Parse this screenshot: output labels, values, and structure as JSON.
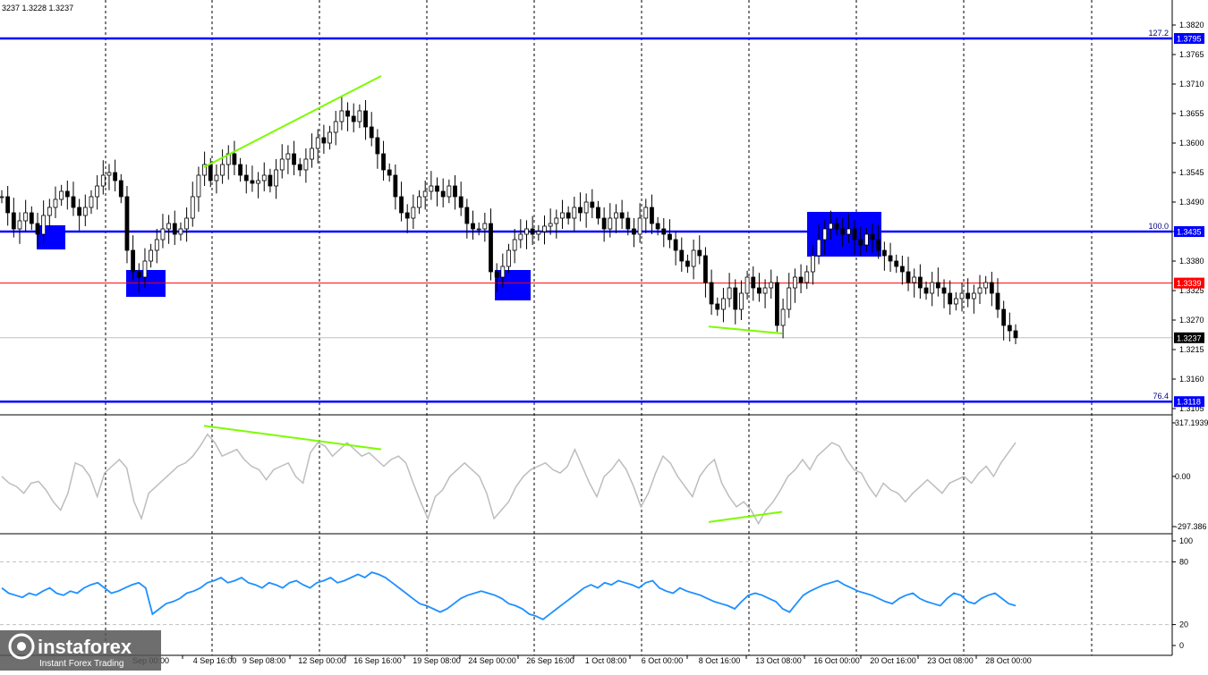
{
  "chart_info": {
    "ohlc_text": "3237 1.3228 1.3237"
  },
  "logo": {
    "name": "instaforex",
    "tagline": "Instant Forex Trading"
  },
  "colors": {
    "candle": "#000000",
    "level_blue": "#0000ff",
    "level_red": "#ff0000",
    "highlight_box": "#0000ff",
    "divergence_line": "#7cfc00",
    "cci_line": "#bdbdbd",
    "rsi_line": "#1e90ff",
    "grid": "#000000"
  },
  "chart_data": [
    {
      "type": "candlestick",
      "name": "price",
      "ylim": [
        1.3105,
        1.384
      ],
      "y_ticks": [
        "1.3820",
        "1.3765",
        "1.3710",
        "1.3655",
        "1.3600",
        "1.3545",
        "1.3490",
        "1.3435",
        "1.3380",
        "1.3325",
        "1.3270",
        "1.3215",
        "1.3160",
        "1.3105"
      ],
      "time_labels": [
        "4 Sep 16:00",
        "9 Sep 08:00",
        "12 Sep 00:00",
        "16 Sep 16:00",
        "19 Sep 08:00",
        "24 Sep 00:00",
        "26 Sep 16:00",
        "1 Oct 08:00",
        "6 Oct 00:00",
        "8 Oct 16:00",
        "13 Oct 08:00",
        "16 Oct 00:00",
        "20 Oct 16:00",
        "23 Oct 08:00",
        "28 Oct 00:00"
      ],
      "left_partial_labels": [
        "Sep 00:00"
      ],
      "levels": [
        {
          "label": "127.2",
          "value": "1.3795",
          "color": "#0000ff"
        },
        {
          "label": "100.0",
          "value": "1.3435",
          "color": "#0000ff"
        },
        {
          "label": "",
          "value": "1.3339",
          "color": "#ff0000"
        },
        {
          "label": "76.4",
          "value": "1.3118",
          "color": "#0000ff"
        }
      ],
      "current_price": "1.3237",
      "closes": [
        1.35,
        1.347,
        1.344,
        1.3455,
        1.347,
        1.345,
        1.343,
        1.3465,
        1.348,
        1.3495,
        1.351,
        1.35,
        1.348,
        1.3465,
        1.348,
        1.35,
        1.352,
        1.354,
        1.3545,
        1.353,
        1.35,
        1.34,
        1.336,
        1.335,
        1.338,
        1.34,
        1.342,
        1.344,
        1.345,
        1.343,
        1.344,
        1.346,
        1.35,
        1.354,
        1.356,
        1.353,
        1.354,
        1.356,
        1.358,
        1.356,
        1.354,
        1.353,
        1.3525,
        1.353,
        1.354,
        1.352,
        1.355,
        1.357,
        1.358,
        1.356,
        1.355,
        1.357,
        1.359,
        1.361,
        1.36,
        1.362,
        1.364,
        1.366,
        1.365,
        1.364,
        1.366,
        1.363,
        1.361,
        1.358,
        1.355,
        1.354,
        1.35,
        1.347,
        1.346,
        1.348,
        1.35,
        1.351,
        1.352,
        1.351,
        1.35,
        1.352,
        1.35,
        1.348,
        1.345,
        1.344,
        1.344,
        1.345,
        1.336,
        1.335,
        1.337,
        1.34,
        1.342,
        1.343,
        1.344,
        1.343,
        1.3435,
        1.3445,
        1.345,
        1.346,
        1.347,
        1.346,
        1.348,
        1.347,
        1.349,
        1.348,
        1.346,
        1.344,
        1.346,
        1.347,
        1.346,
        1.344,
        1.343,
        1.346,
        1.348,
        1.345,
        1.344,
        1.343,
        1.342,
        1.34,
        1.338,
        1.337,
        1.34,
        1.339,
        1.334,
        1.33,
        1.329,
        1.331,
        1.333,
        1.329,
        1.332,
        1.335,
        1.333,
        1.332,
        1.333,
        1.334,
        1.326,
        1.329,
        1.333,
        1.335,
        1.334,
        1.336,
        1.339,
        1.342,
        1.344,
        1.345,
        1.344,
        1.343,
        1.344,
        1.342,
        1.341,
        1.343,
        1.342,
        1.34,
        1.339,
        1.338,
        1.337,
        1.336,
        1.334,
        1.335,
        1.333,
        1.332,
        1.334,
        1.333,
        1.332,
        1.33,
        1.331,
        1.332,
        1.331,
        1.332,
        1.333,
        1.334,
        1.332,
        1.329,
        1.326,
        1.325,
        1.3237
      ],
      "divergence_lines": [
        {
          "from": [
            "4 Sep 16:00",
            1.3555
          ],
          "to": [
            "16 Sep 16:00",
            1.3725
          ]
        },
        {
          "from": [
            "8 Oct 16:00",
            1.3258
          ],
          "to": [
            "13 Oct 08:00",
            1.3245
          ]
        }
      ]
    },
    {
      "type": "line",
      "name": "CCI",
      "y_ticks": [
        "317.1939",
        "0.00",
        "-297.386"
      ],
      "ylim": [
        -297.386,
        317.1939
      ],
      "values": [
        0,
        -40,
        -60,
        -100,
        -40,
        -30,
        -80,
        -150,
        -200,
        -100,
        80,
        60,
        0,
        -120,
        20,
        60,
        100,
        50,
        -150,
        -250,
        -100,
        -60,
        -20,
        20,
        60,
        80,
        120,
        180,
        250,
        200,
        120,
        140,
        160,
        100,
        60,
        40,
        -20,
        40,
        60,
        80,
        0,
        -40,
        140,
        200,
        180,
        120,
        160,
        200,
        160,
        120,
        140,
        100,
        60,
        100,
        120,
        80,
        -40,
        -150,
        -250,
        -120,
        -80,
        0,
        40,
        80,
        40,
        0,
        -100,
        -250,
        -200,
        -150,
        -60,
        0,
        40,
        60,
        80,
        40,
        20,
        60,
        160,
        60,
        -40,
        -120,
        0,
        40,
        100,
        40,
        -60,
        -180,
        -100,
        20,
        120,
        80,
        0,
        -60,
        -120,
        0,
        60,
        100,
        -40,
        -120,
        -180,
        -150,
        -200,
        -280,
        -200,
        -150,
        -80,
        0,
        40,
        100,
        40,
        120,
        160,
        200,
        180,
        100,
        40,
        20,
        -60,
        -120,
        -40,
        -80,
        -100,
        -150,
        -100,
        -60,
        -20,
        -60,
        -100,
        -40,
        -20,
        0,
        -40,
        20,
        60,
        0,
        80,
        140,
        200
      ],
      "divergence_lines": [
        {
          "from": [
            "4 Sep 16:00",
            300
          ],
          "to": [
            "16 Sep 16:00",
            160
          ]
        },
        {
          "from": [
            "8 Oct 16:00",
            -270
          ],
          "to": [
            "13 Oct 08:00",
            -210
          ]
        }
      ]
    },
    {
      "type": "line",
      "name": "RSI",
      "y_ticks": [
        "100",
        "80",
        "20",
        "0"
      ],
      "ylim": [
        0,
        100
      ],
      "values": [
        55,
        50,
        48,
        46,
        50,
        48,
        52,
        55,
        50,
        48,
        52,
        50,
        55,
        58,
        60,
        55,
        50,
        52,
        55,
        58,
        60,
        55,
        30,
        35,
        40,
        42,
        45,
        50,
        52,
        55,
        60,
        62,
        65,
        60,
        62,
        65,
        60,
        58,
        55,
        60,
        58,
        55,
        60,
        62,
        58,
        55,
        60,
        62,
        65,
        60,
        62,
        65,
        68,
        65,
        70,
        68,
        65,
        60,
        55,
        50,
        45,
        40,
        38,
        35,
        32,
        35,
        40,
        45,
        48,
        50,
        52,
        50,
        48,
        45,
        40,
        38,
        35,
        30,
        28,
        25,
        30,
        35,
        40,
        45,
        50,
        55,
        58,
        55,
        60,
        58,
        62,
        60,
        58,
        55,
        60,
        62,
        55,
        52,
        50,
        55,
        52,
        50,
        48,
        45,
        42,
        40,
        38,
        35,
        42,
        48,
        50,
        48,
        45,
        42,
        35,
        32,
        40,
        48,
        52,
        55,
        58,
        60,
        62,
        58,
        55,
        52,
        50,
        48,
        45,
        42,
        40,
        45,
        48,
        50,
        45,
        42,
        40,
        38,
        45,
        50,
        48,
        42,
        40,
        45,
        48,
        50,
        45,
        40,
        38
      ],
      "guide_levels": [
        80,
        20
      ]
    }
  ]
}
